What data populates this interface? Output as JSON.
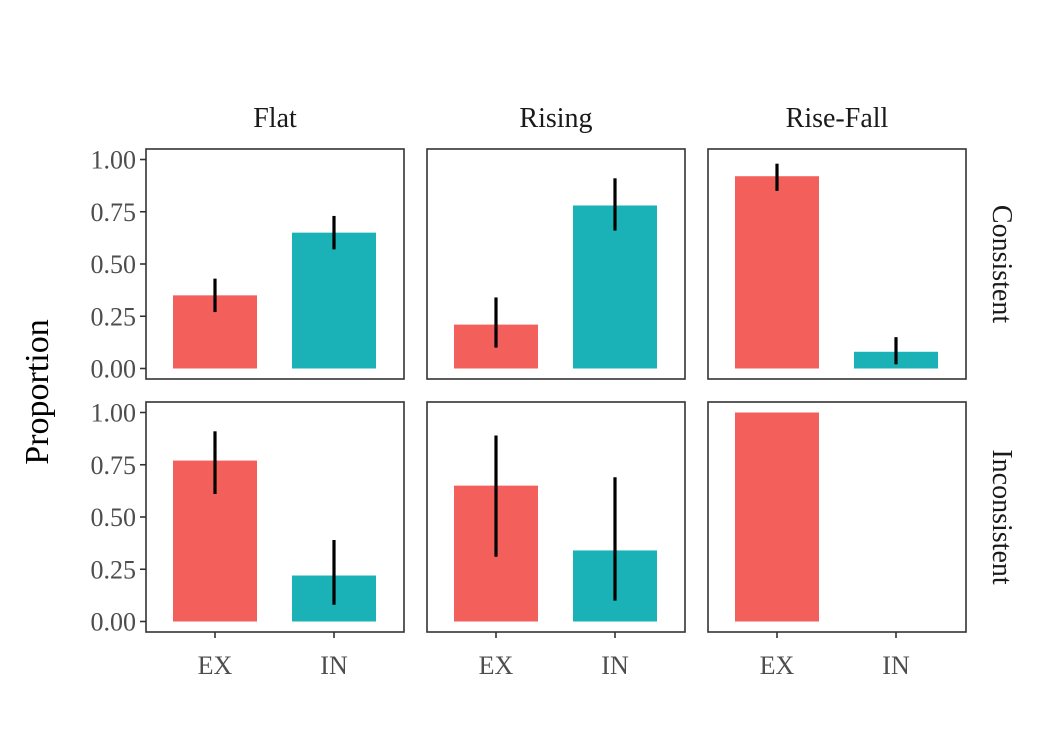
{
  "chart_data": {
    "type": "bar",
    "facet_cols": [
      "Flat",
      "Rising",
      "Rise-Fall"
    ],
    "facet_rows": [
      "Consistent",
      "Inconsistent"
    ],
    "categories": [
      "EX",
      "IN"
    ],
    "ylabel": "Proportion",
    "xlabel": "",
    "ylim": [
      0,
      1
    ],
    "yticks": [
      "0.00",
      "0.25",
      "0.50",
      "0.75",
      "1.00"
    ],
    "colors": {
      "EX": "#F35F5A",
      "IN": "#1AB2B7"
    },
    "panels": [
      {
        "row": "Consistent",
        "col": "Flat",
        "bars": [
          {
            "category": "EX",
            "value": 0.35,
            "err": [
              0.27,
              0.43
            ]
          },
          {
            "category": "IN",
            "value": 0.65,
            "err": [
              0.57,
              0.73
            ]
          }
        ]
      },
      {
        "row": "Consistent",
        "col": "Rising",
        "bars": [
          {
            "category": "EX",
            "value": 0.21,
            "err": [
              0.1,
              0.34
            ]
          },
          {
            "category": "IN",
            "value": 0.78,
            "err": [
              0.66,
              0.91
            ]
          }
        ]
      },
      {
        "row": "Consistent",
        "col": "Rise-Fall",
        "bars": [
          {
            "category": "EX",
            "value": 0.92,
            "err": [
              0.85,
              0.98
            ]
          },
          {
            "category": "IN",
            "value": 0.08,
            "err": [
              0.02,
              0.15
            ]
          }
        ]
      },
      {
        "row": "Inconsistent",
        "col": "Flat",
        "bars": [
          {
            "category": "EX",
            "value": 0.77,
            "err": [
              0.61,
              0.91
            ]
          },
          {
            "category": "IN",
            "value": 0.22,
            "err": [
              0.08,
              0.39
            ]
          }
        ]
      },
      {
        "row": "Inconsistent",
        "col": "Rising",
        "bars": [
          {
            "category": "EX",
            "value": 0.65,
            "err": [
              0.31,
              0.89
            ]
          },
          {
            "category": "IN",
            "value": 0.34,
            "err": [
              0.1,
              0.69
            ]
          }
        ]
      },
      {
        "row": "Inconsistent",
        "col": "Rise-Fall",
        "bars": [
          {
            "category": "EX",
            "value": 1.0
          }
        ]
      }
    ]
  }
}
